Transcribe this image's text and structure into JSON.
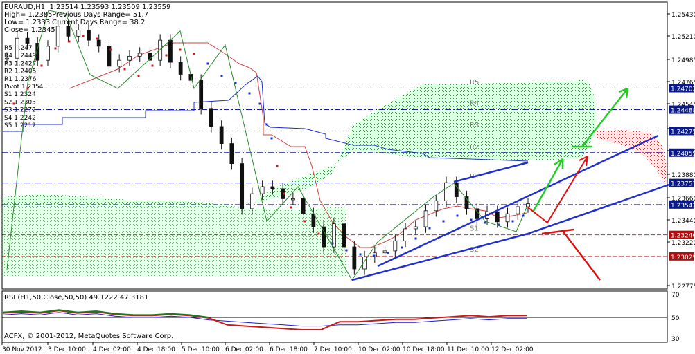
{
  "symbol_header": "EURAUD,H1  1.23514 1.23593 1.23509 1.23559",
  "stats": {
    "high": "High= 1.2385",
    "prev_range": "Previous Days Range= 51.7",
    "low": "Low= 1.2333",
    "curr_range": "Current Days Range= 38.2",
    "close": "Close= 1.2345"
  },
  "pivot_labels": [
    "R5 1.247",
    "R4 1.2449",
    "R3 1.2427",
    "R2 1.2405",
    "R1 1.2376",
    "Pivot 1.2354",
    "S1 1.2324",
    "S2 1.2303",
    "S3 1.2272",
    "S4 1.2242",
    "S5 1.2212"
  ],
  "copyright": "ACFX, © 2001-2012, MetaQuotes Software Corp.",
  "rsi_header": "RSI (H1,50,Close,50,50) 49.1222 47.3181",
  "colors": {
    "pivot_dash": "#1a1aa0",
    "support_dash": "#c03030",
    "blue_trend": "#1f2fd0",
    "red_arrow": "#e01010",
    "green_arrow": "#22cc22",
    "cloud_green": "#3aa04a",
    "cloud_red": "#d04040",
    "tag_blue": "#0a1a8a",
    "tag_red": "#aa1010"
  },
  "chart_data": [
    {
      "type": "line",
      "title": "EURAUD,H1  1.23514 1.23593 1.23509 1.23559",
      "y_ticks": [
        "1.25430",
        "1.25210",
        "1.24985",
        "1.24765",
        "1.24545",
        "1.24325",
        "1.24100",
        "1.23880",
        "1.23660",
        "1.23440",
        "1.23220",
        "1.22775"
      ],
      "ylim": [
        1.227,
        1.2556
      ],
      "x_ticks": [
        "30 Nov 2012",
        "3 Dec 10:00",
        "4 Dec 02:00",
        "4 Dec 18:00",
        "5 Dec 10:00",
        "6 Dec 02:00",
        "6 Dec 18:00",
        "7 Dec 10:00",
        "10 Dec 02:00",
        "10 Dec 18:00",
        "11 Dec 10:00",
        "12 Dec 02:00"
      ],
      "price_tags": [
        {
          "label": "1.24702",
          "value": 1.24702,
          "kind": "blue"
        },
        {
          "label": "1.24488",
          "value": 1.24488,
          "kind": "blue"
        },
        {
          "label": "1.24275",
          "value": 1.24275,
          "kind": "blue"
        },
        {
          "label": "1.24059",
          "value": 1.24059,
          "kind": "blue"
        },
        {
          "label": "1.23757",
          "value": 1.23757,
          "kind": "blue"
        },
        {
          "label": "1.23542",
          "value": 1.23542,
          "kind": "blue"
        },
        {
          "label": "1.23240",
          "value": 1.2324,
          "kind": "red"
        },
        {
          "label": "1.23025",
          "value": 1.23025,
          "kind": "red"
        }
      ],
      "level_labels": [
        {
          "label": "R5",
          "value": 1.247
        },
        {
          "label": "R4",
          "value": 1.2449
        },
        {
          "label": "R3",
          "value": 1.2427
        },
        {
          "label": "R2",
          "value": 1.2405
        },
        {
          "label": "R1",
          "value": 1.2376
        },
        {
          "label": "S1",
          "value": 1.2324
        },
        {
          "label": "S2",
          "value": 1.2303
        }
      ],
      "series": [
        {
          "name": "",
          "values": [
            1.25,
            1.252,
            1.2515,
            1.2498,
            1.2512,
            1.2532,
            1.2522,
            1.2528,
            1.2518,
            1.2512,
            1.2492,
            1.2498,
            1.2502,
            1.2505,
            1.2498,
            1.2518,
            1.2496,
            1.2484,
            1.2478,
            1.245,
            1.2432,
            1.2415,
            1.2395,
            1.235,
            1.2365,
            1.2372,
            1.237,
            1.236,
            1.236,
            1.2345,
            1.2332,
            1.2312,
            1.2335,
            1.2312,
            1.229,
            1.2302,
            1.2306,
            1.2308,
            1.2318,
            1.233,
            1.2332,
            1.2348,
            1.2358,
            1.2376,
            1.2362,
            1.235,
            1.234,
            1.2347,
            1.2337,
            1.2345,
            1.2352,
            1.2355
          ]
        }
      ]
    },
    {
      "type": "line",
      "title": "RSI (H1,50,Close,50,50) 49.1222 47.3181",
      "y_ticks": [
        "70",
        "50",
        "30"
      ],
      "ylim": [
        30,
        70
      ],
      "series": [
        {
          "name": "",
          "values": [
            52,
            53,
            52,
            54,
            52,
            53,
            51,
            50,
            50,
            51,
            50,
            48,
            47,
            46,
            45,
            44,
            43,
            43,
            44,
            44,
            45,
            46,
            46,
            47,
            48,
            49,
            48,
            49,
            49
          ]
        }
      ]
    }
  ]
}
